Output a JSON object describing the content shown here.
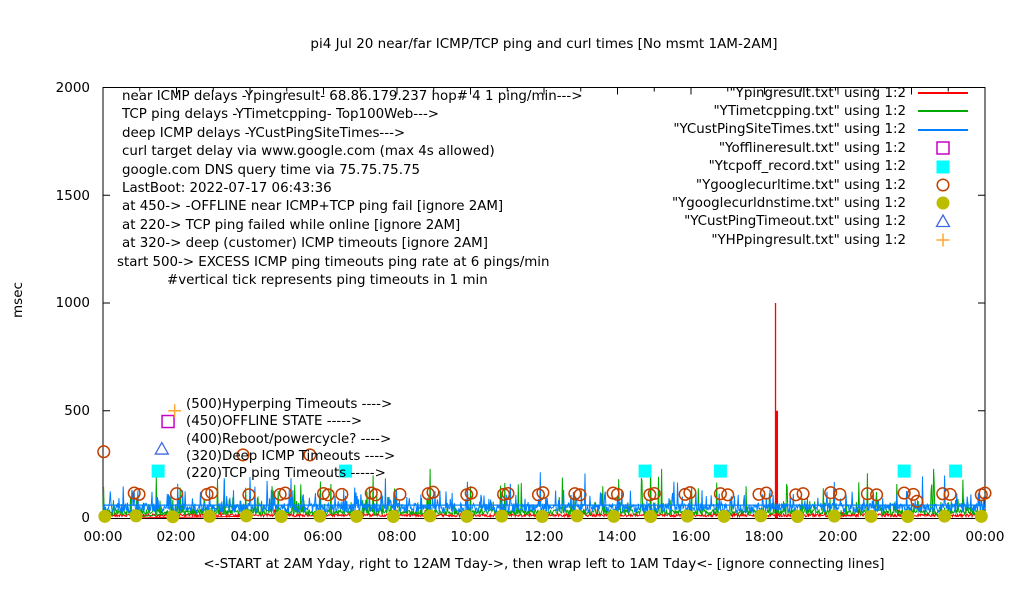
{
  "title": "pi4 Jul 20  near/far ICMP/TCP ping and curl times [No msmt 1AM-2AM]",
  "ylabel": "msec",
  "caption": "<-START at 2AM Yday, right to 12AM Tday->, then wrap left to 1AM Tday<- [ignore connecting lines]",
  "annotations_block": [
    "near ICMP delays -Ypingresult- 68.86.179.237 hop# 4 1 ping/min--->",
    "TCP ping delays -YTimetcpping- Top100Web--->",
    "deep ICMP delays -YCustPingSiteTimes--->",
    "curl target delay via www.google.com (max 4s allowed)",
    "google.com DNS query time via 75.75.75.75",
    "LastBoot: 2022-07-17 06:43:36",
    "at 450-> -OFFLINE near ICMP+TCP ping fail [ignore 2AM]",
    "at 220-> TCP ping failed while online [ignore 2AM]",
    "at 320-> deep (customer) ICMP timeouts [ignore 2AM]",
    "start 500-> EXCESS ICMP ping timeouts ping rate at 6 pings/min",
    "#vertical tick represents ping timeouts in 1 min"
  ],
  "level_labels": [
    "(500)Hyperping Timeouts ---->",
    "(450)OFFLINE STATE ----->",
    "(400)Reboot/powercycle? ---->",
    "(320)Deep ICMP Timeouts ---->",
    "(220)TCP ping Timeouts ----->"
  ],
  "legend": [
    {
      "label": "\"Ypingresult.txt\" using 1:2",
      "marker": "line",
      "color": "#ff0000"
    },
    {
      "label": "\"YTimetcpping.txt\" using 1:2",
      "marker": "line",
      "color": "#00a800"
    },
    {
      "label": "\"YCustPingSiteTimes.txt\" using 1:2",
      "marker": "line",
      "color": "#0080ff"
    },
    {
      "label": "\"Yofflineresult.txt\" using 1:2",
      "marker": "square-open",
      "color": "#c800c8"
    },
    {
      "label": "\"Ytcpoff_record.txt\" using 1:2",
      "marker": "square-filled",
      "color": "#00ffff"
    },
    {
      "label": "\"Ygooglecurltime.txt\" using 1:2",
      "marker": "circle-open",
      "color": "#c04000"
    },
    {
      "label": "\"Ygooglecurldnstime.txt\" using 1:2",
      "marker": "circle-filled",
      "color": "#bdbd00"
    },
    {
      "label": "\"YCustPingTimeout.txt\" using 1:2",
      "marker": "triangle-open",
      "color": "#4169e1"
    },
    {
      "label": "\"YHPpingresult.txt\" using 1:2",
      "marker": "plus",
      "color": "#ffa533"
    }
  ],
  "axes": {
    "y_ticks": [
      "0",
      "500",
      "1000",
      "1500",
      "2000"
    ],
    "x_ticks": [
      "00:00",
      "02:00",
      "04:00",
      "06:00",
      "08:00",
      "10:00",
      "12:00",
      "14:00",
      "16:00",
      "18:00",
      "20:00",
      "22:00",
      "00:00"
    ],
    "y_range": [
      0,
      2000
    ],
    "x_range_hours": [
      0,
      24
    ],
    "grid": "off",
    "legend_position": "top-right-inside"
  },
  "chart_data": {
    "type": "line",
    "title": "pi4 Jul 20  near/far ICMP/TCP ping and curl times [No msmt 1AM-2AM]",
    "xlabel": "<-START at 2AM Yday, right to 12AM Tday->, then wrap left to 1AM Tday<- [ignore connecting lines]",
    "ylabel": "msec",
    "x_unit": "hours-of-day",
    "xlim": [
      0,
      24
    ],
    "ylim": [
      0,
      2000
    ],
    "series": [
      {
        "name": "Ypingresult.txt",
        "type": "line",
        "color": "#ff0000",
        "noise": {
          "base": [
            8,
            22
          ],
          "p1": 0.03,
          "r1": [
            25,
            45
          ]
        },
        "spike_events": [
          {
            "t": 18.3,
            "v": 1000,
            "w": 1.3
          },
          {
            "t": 18.33,
            "v": 500,
            "w": 2.8
          }
        ],
        "wrap_segment": [
          [
            1.0,
            3
          ],
          [
            3.86,
            10
          ]
        ]
      },
      {
        "name": "YTimetcpping.txt",
        "type": "line",
        "color": "#00a800",
        "noise": {
          "base": [
            16,
            42
          ],
          "p1": 0.1,
          "r1": [
            50,
            100
          ],
          "p2": 0.02,
          "r2": [
            90,
            200
          ]
        },
        "spikes": [
          [
            3.3,
            180
          ],
          [
            4.6,
            150
          ],
          [
            6.2,
            160
          ],
          [
            7.35,
            200
          ],
          [
            8.9,
            230
          ],
          [
            10.0,
            150
          ],
          [
            10.94,
            165
          ],
          [
            12.5,
            190
          ],
          [
            13.6,
            150
          ],
          [
            14.9,
            250
          ],
          [
            15.2,
            230
          ],
          [
            16.2,
            140
          ],
          [
            17.5,
            150
          ],
          [
            18.6,
            160
          ],
          [
            19.6,
            140
          ],
          [
            20.8,
            210
          ],
          [
            21.6,
            160
          ],
          [
            22.6,
            230
          ],
          [
            23.4,
            180
          ]
        ],
        "wrap_segment": [
          [
            1.0,
            8
          ],
          [
            3.86,
            62
          ]
        ]
      },
      {
        "name": "YCustPingSiteTimes.txt",
        "type": "line",
        "color": "#0080ff",
        "noise": {
          "base": [
            28,
            72
          ],
          "p1": 0.12,
          "r1": [
            75,
            135
          ],
          "p2": 0.015,
          "r2": [
            140,
            210
          ]
        },
        "spikes": [
          [
            11.9,
            215
          ],
          [
            19.9,
            170
          ],
          [
            22.3,
            195
          ]
        ],
        "constant_level": 62
      },
      {
        "name": "Yofflineresult.txt",
        "type": "points",
        "marker": "square-open",
        "color": "#c800c8",
        "points": [
          [
            1.77,
            450
          ]
        ]
      },
      {
        "name": "Ytcpoff_record.txt",
        "type": "points",
        "marker": "square-filled",
        "color": "#00ffff",
        "points": [
          [
            1.5,
            220
          ],
          [
            6.6,
            220
          ],
          [
            14.75,
            220
          ],
          [
            16.8,
            220
          ],
          [
            21.8,
            220
          ],
          [
            23.2,
            220
          ]
        ]
      },
      {
        "name": "Ygooglecurltime.txt",
        "type": "points",
        "marker": "circle-open",
        "color": "#c04000",
        "points": [
          [
            0.02,
            310
          ],
          [
            0.85,
            118
          ],
          [
            0.98,
            112
          ],
          [
            2.0,
            115
          ],
          [
            2.83,
            112
          ],
          [
            2.96,
            120
          ],
          [
            3.81,
            295
          ],
          [
            3.97,
            110
          ],
          [
            4.82,
            112
          ],
          [
            4.96,
            118
          ],
          [
            5.63,
            295
          ],
          [
            6.0,
            116
          ],
          [
            6.13,
            110
          ],
          [
            6.5,
            112
          ],
          [
            7.3,
            118
          ],
          [
            7.42,
            110
          ],
          [
            8.08,
            112
          ],
          [
            8.85,
            115
          ],
          [
            8.98,
            122
          ],
          [
            9.9,
            110
          ],
          [
            10.02,
            118
          ],
          [
            10.9,
            112
          ],
          [
            11.02,
            116
          ],
          [
            11.85,
            110
          ],
          [
            11.97,
            120
          ],
          [
            12.84,
            115
          ],
          [
            12.98,
            110
          ],
          [
            13.88,
            118
          ],
          [
            14.0,
            112
          ],
          [
            14.88,
            110
          ],
          [
            15.0,
            116
          ],
          [
            15.84,
            112
          ],
          [
            15.97,
            120
          ],
          [
            16.8,
            115
          ],
          [
            17.0,
            110
          ],
          [
            17.85,
            112
          ],
          [
            18.05,
            118
          ],
          [
            18.85,
            110
          ],
          [
            19.05,
            115
          ],
          [
            19.8,
            120
          ],
          [
            20.05,
            112
          ],
          [
            20.8,
            115
          ],
          [
            21.05,
            110
          ],
          [
            21.8,
            118
          ],
          [
            22.05,
            112
          ],
          [
            22.15,
            80
          ],
          [
            22.85,
            115
          ],
          [
            23.05,
            112
          ],
          [
            23.9,
            110
          ],
          [
            24.0,
            118
          ]
        ]
      },
      {
        "name": "Ygooglecurldnstime.txt",
        "type": "points",
        "marker": "circle-filled",
        "color": "#bdbd00",
        "points": [
          [
            0.05,
            10
          ],
          [
            0.9,
            12
          ],
          [
            1.9,
            8
          ],
          [
            2.9,
            10
          ],
          [
            3.9,
            12
          ],
          [
            4.85,
            9
          ],
          [
            5.9,
            11
          ],
          [
            6.9,
            10
          ],
          [
            7.9,
            9
          ],
          [
            8.9,
            12
          ],
          [
            9.9,
            10
          ],
          [
            10.85,
            11
          ],
          [
            11.95,
            9
          ],
          [
            12.9,
            12
          ],
          [
            13.9,
            10
          ],
          [
            14.9,
            9
          ],
          [
            15.9,
            11
          ],
          [
            16.9,
            10
          ],
          [
            17.9,
            12
          ],
          [
            18.9,
            9
          ],
          [
            19.9,
            11
          ],
          [
            20.9,
            10
          ],
          [
            21.9,
            9
          ],
          [
            22.9,
            11
          ],
          [
            23.9,
            10
          ]
        ]
      },
      {
        "name": "YCustPingTimeout.txt",
        "type": "points",
        "marker": "triangle-open",
        "color": "#4169e1",
        "points": [
          [
            1.6,
            320
          ]
        ]
      },
      {
        "name": "YHPpingresult.txt",
        "type": "points",
        "marker": "plus",
        "color": "#ffa533",
        "points": [
          [
            1.95,
            500
          ]
        ]
      }
    ]
  }
}
